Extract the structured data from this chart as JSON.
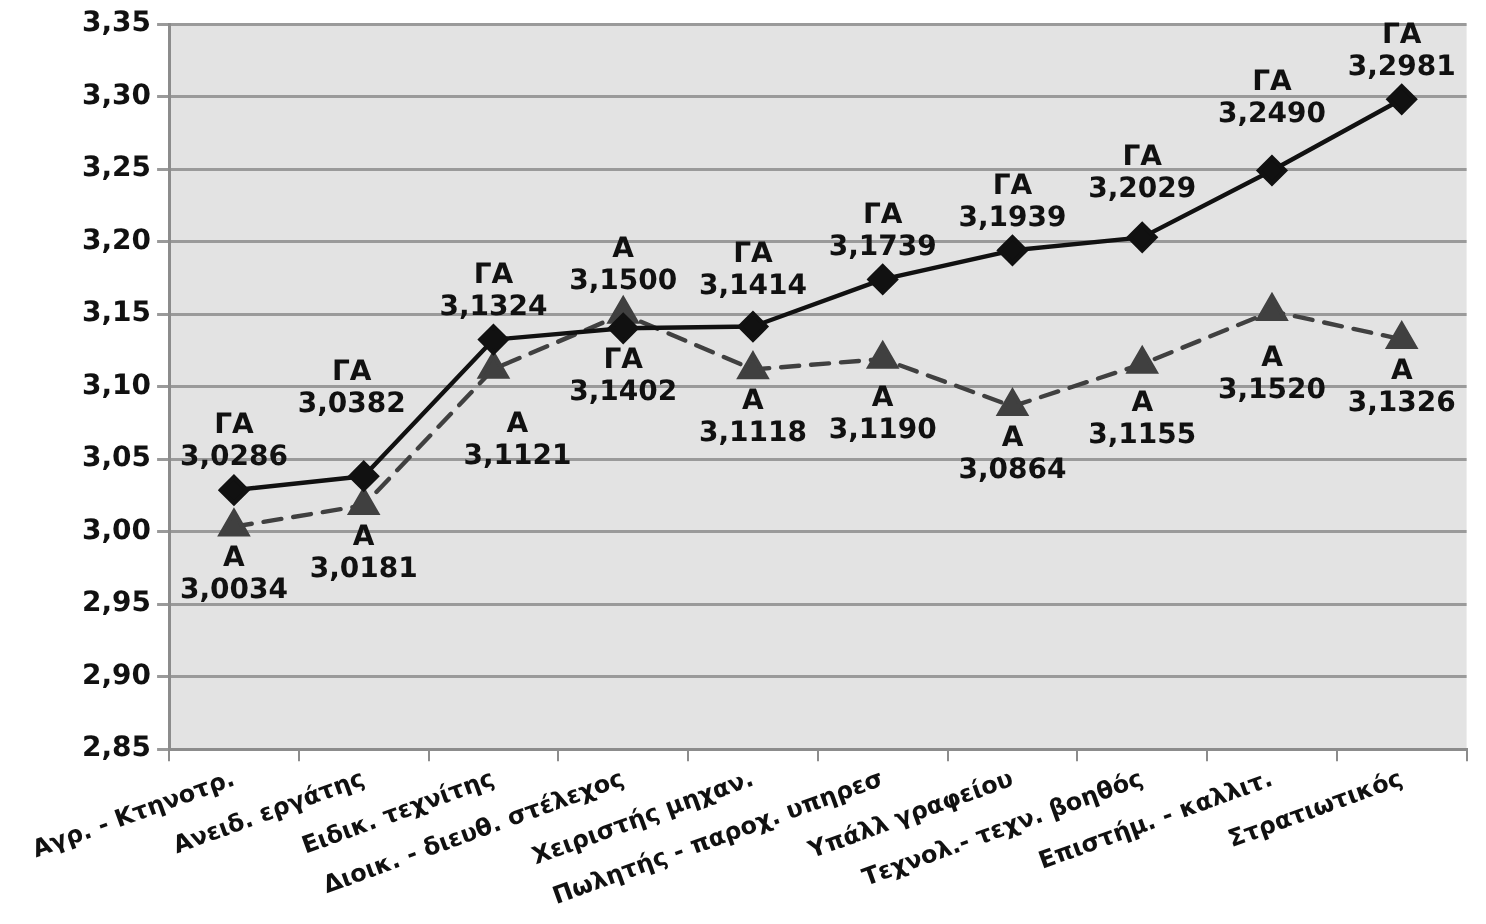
{
  "chart_data": {
    "type": "line",
    "categories": [
      "Αγρ. - Κτηνοτρ.",
      "Ανειδ. εργάτης",
      "Ειδικ. τεχνίτης",
      "Διοικ. - διευθ. στέλεχος",
      "Χειριστής μηχαν.",
      "Πωλητής - παροχ. υπηρεσ",
      "Υπάλλ γραφείου",
      "Τεχνολ.- τεχν. βοηθός",
      "Επιστήμ. - καλλιτ.",
      "Στρατιωτικός"
    ],
    "series": [
      {
        "name": "ΓΑ",
        "color": "#111111",
        "marker": "diamond",
        "line_style": "solid",
        "values": [
          3.0286,
          3.0382,
          3.1324,
          3.1402,
          3.1414,
          3.1739,
          3.1939,
          3.2029,
          3.249,
          3.2981
        ],
        "value_labels": [
          "3,0286",
          "3,0382",
          "3,1324",
          "3,1402",
          "3,1414",
          "3,1739",
          "3,1939",
          "3,2029",
          "3,2490",
          "3,2981"
        ]
      },
      {
        "name": "Α",
        "color": "#404040",
        "marker": "triangle",
        "line_style": "dashed",
        "values": [
          3.0034,
          3.0181,
          3.1121,
          3.15,
          3.1118,
          3.119,
          3.0864,
          3.1155,
          3.152,
          3.1326
        ],
        "value_labels": [
          "3,0034",
          "3,0181",
          "3,1121",
          "3,1500",
          "3,1118",
          "3,1190",
          "3,0864",
          "3,1155",
          "3,1520",
          "3,1326"
        ]
      }
    ],
    "ylim": [
      2.85,
      3.35
    ],
    "yticks": [
      {
        "value": 2.85,
        "label": "2,85"
      },
      {
        "value": 2.9,
        "label": "2,90"
      },
      {
        "value": 2.95,
        "label": "2,95"
      },
      {
        "value": 3.0,
        "label": "3,00"
      },
      {
        "value": 3.05,
        "label": "3,05"
      },
      {
        "value": 3.1,
        "label": "3,10"
      },
      {
        "value": 3.15,
        "label": "3,15"
      },
      {
        "value": 3.2,
        "label": "3,20"
      },
      {
        "value": 3.25,
        "label": "3,25"
      },
      {
        "value": 3.3,
        "label": "3,30"
      },
      {
        "value": 3.35,
        "label": "3,35"
      }
    ],
    "grid": "y",
    "legend": false
  }
}
